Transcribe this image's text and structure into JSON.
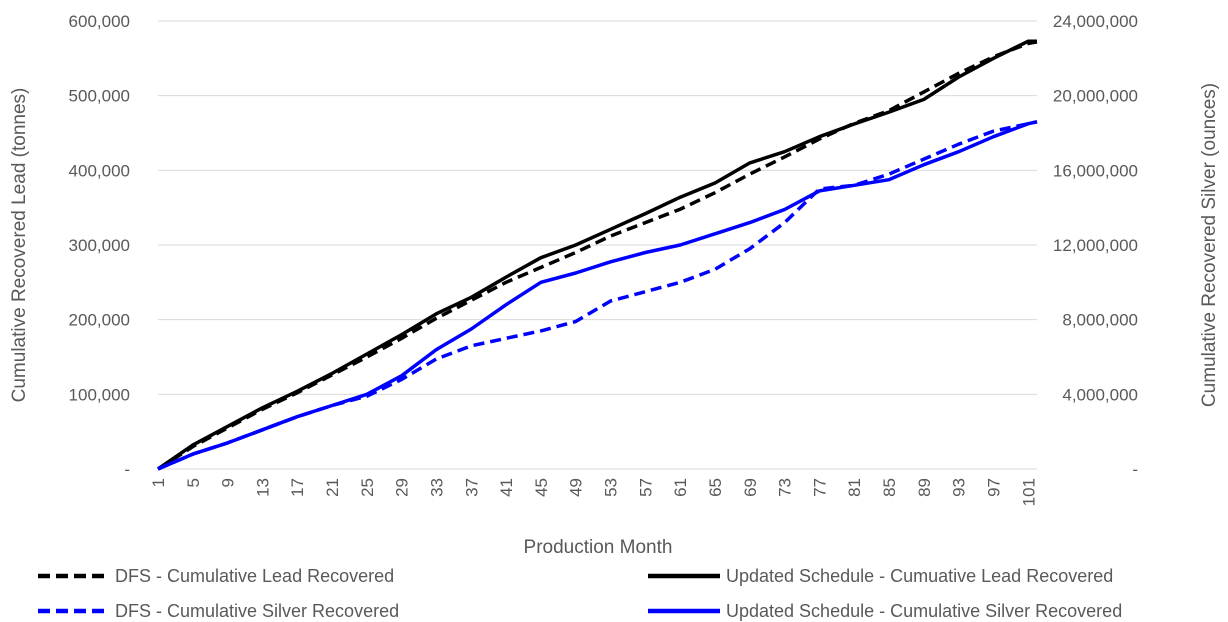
{
  "chart_data": {
    "type": "line",
    "xlabel": "Production Month",
    "ylabel_left": "Cumulative Recovered Lead (tonnes)",
    "ylabel_right": "Cumulative Recovered Silver (ounces)",
    "x_tick_labels": [
      "1",
      "5",
      "9",
      "13",
      "17",
      "21",
      "25",
      "29",
      "33",
      "37",
      "41",
      "45",
      "49",
      "53",
      "57",
      "61",
      "65",
      "69",
      "73",
      "77",
      "81",
      "85",
      "89",
      "93",
      "97",
      "101"
    ],
    "xlim": [
      1,
      102
    ],
    "ylim_left": [
      0,
      600000
    ],
    "ylim_right": [
      0,
      24000000
    ],
    "y_left_ticks": [
      {
        "value": 0,
        "label": "-"
      },
      {
        "value": 100000,
        "label": "100,000"
      },
      {
        "value": 200000,
        "label": "200,000"
      },
      {
        "value": 300000,
        "label": "300,000"
      },
      {
        "value": 400000,
        "label": "400,000"
      },
      {
        "value": 500000,
        "label": "500,000"
      },
      {
        "value": 600000,
        "label": "600,000"
      }
    ],
    "y_right_ticks": [
      {
        "value": 0,
        "label": "-"
      },
      {
        "value": 4000000,
        "label": "4,000,000"
      },
      {
        "value": 8000000,
        "label": "8,000,000"
      },
      {
        "value": 12000000,
        "label": "12,000,000"
      },
      {
        "value": 16000000,
        "label": "16,000,000"
      },
      {
        "value": 20000000,
        "label": "20,000,000"
      },
      {
        "value": 24000000,
        "label": "24,000,000"
      }
    ],
    "grid": "horizontal",
    "legend_position": "bottom",
    "series": [
      {
        "name": "DFS - Cumulative Lead Recovered",
        "axis": "left",
        "color": "#000000",
        "dash": "dashed",
        "x": [
          1,
          5,
          9,
          13,
          17,
          21,
          25,
          29,
          33,
          37,
          41,
          45,
          49,
          53,
          57,
          61,
          65,
          69,
          73,
          77,
          81,
          85,
          89,
          93,
          97,
          101,
          102
        ],
        "y": [
          0,
          30000,
          55000,
          80000,
          102000,
          126000,
          150000,
          175000,
          202000,
          226000,
          250000,
          270000,
          290000,
          312000,
          330000,
          348000,
          370000,
          395000,
          418000,
          442000,
          463000,
          480000,
          505000,
          530000,
          552000,
          570000,
          572000
        ]
      },
      {
        "name": "Updated Schedule - Cumuative Lead Recovered",
        "axis": "left",
        "color": "#000000",
        "dash": "solid",
        "x": [
          1,
          5,
          9,
          13,
          17,
          21,
          25,
          29,
          33,
          37,
          41,
          45,
          49,
          53,
          57,
          61,
          65,
          69,
          73,
          77,
          81,
          85,
          89,
          93,
          97,
          101,
          102
        ],
        "y": [
          0,
          32000,
          57000,
          82000,
          104000,
          128000,
          154000,
          180000,
          208000,
          230000,
          257000,
          283000,
          300000,
          321000,
          342000,
          364000,
          383000,
          410000,
          425000,
          445000,
          462000,
          478000,
          495000,
          525000,
          550000,
          573000,
          573000
        ]
      },
      {
        "name": "DFS - Cumulative Silver Recovered",
        "axis": "right",
        "color": "#0000ff",
        "dash": "dashed",
        "x": [
          1,
          5,
          9,
          13,
          17,
          21,
          25,
          29,
          33,
          37,
          41,
          45,
          49,
          53,
          57,
          61,
          65,
          69,
          73,
          77,
          81,
          85,
          89,
          93,
          97,
          101,
          102
        ],
        "y": [
          0,
          800000,
          1400000,
          2100000,
          2800000,
          3400000,
          3900000,
          4800000,
          5900000,
          6600000,
          7000000,
          7400000,
          7900000,
          9000000,
          9500000,
          10000000,
          10700000,
          11800000,
          13200000,
          15000000,
          15200000,
          15800000,
          16600000,
          17400000,
          18100000,
          18500000,
          18600000
        ]
      },
      {
        "name": "Updated Schedule - Cumulative Silver Recovered",
        "axis": "right",
        "color": "#0000ff",
        "dash": "solid",
        "x": [
          1,
          5,
          9,
          13,
          17,
          21,
          25,
          29,
          33,
          37,
          41,
          45,
          49,
          53,
          57,
          61,
          65,
          69,
          73,
          77,
          81,
          85,
          89,
          93,
          97,
          101,
          102
        ],
        "y": [
          0,
          800000,
          1400000,
          2100000,
          2800000,
          3400000,
          4000000,
          5000000,
          6400000,
          7500000,
          8800000,
          10000000,
          10500000,
          11100000,
          11600000,
          12000000,
          12600000,
          13200000,
          13900000,
          14900000,
          15200000,
          15500000,
          16300000,
          17000000,
          17800000,
          18500000,
          18600000
        ]
      }
    ]
  }
}
